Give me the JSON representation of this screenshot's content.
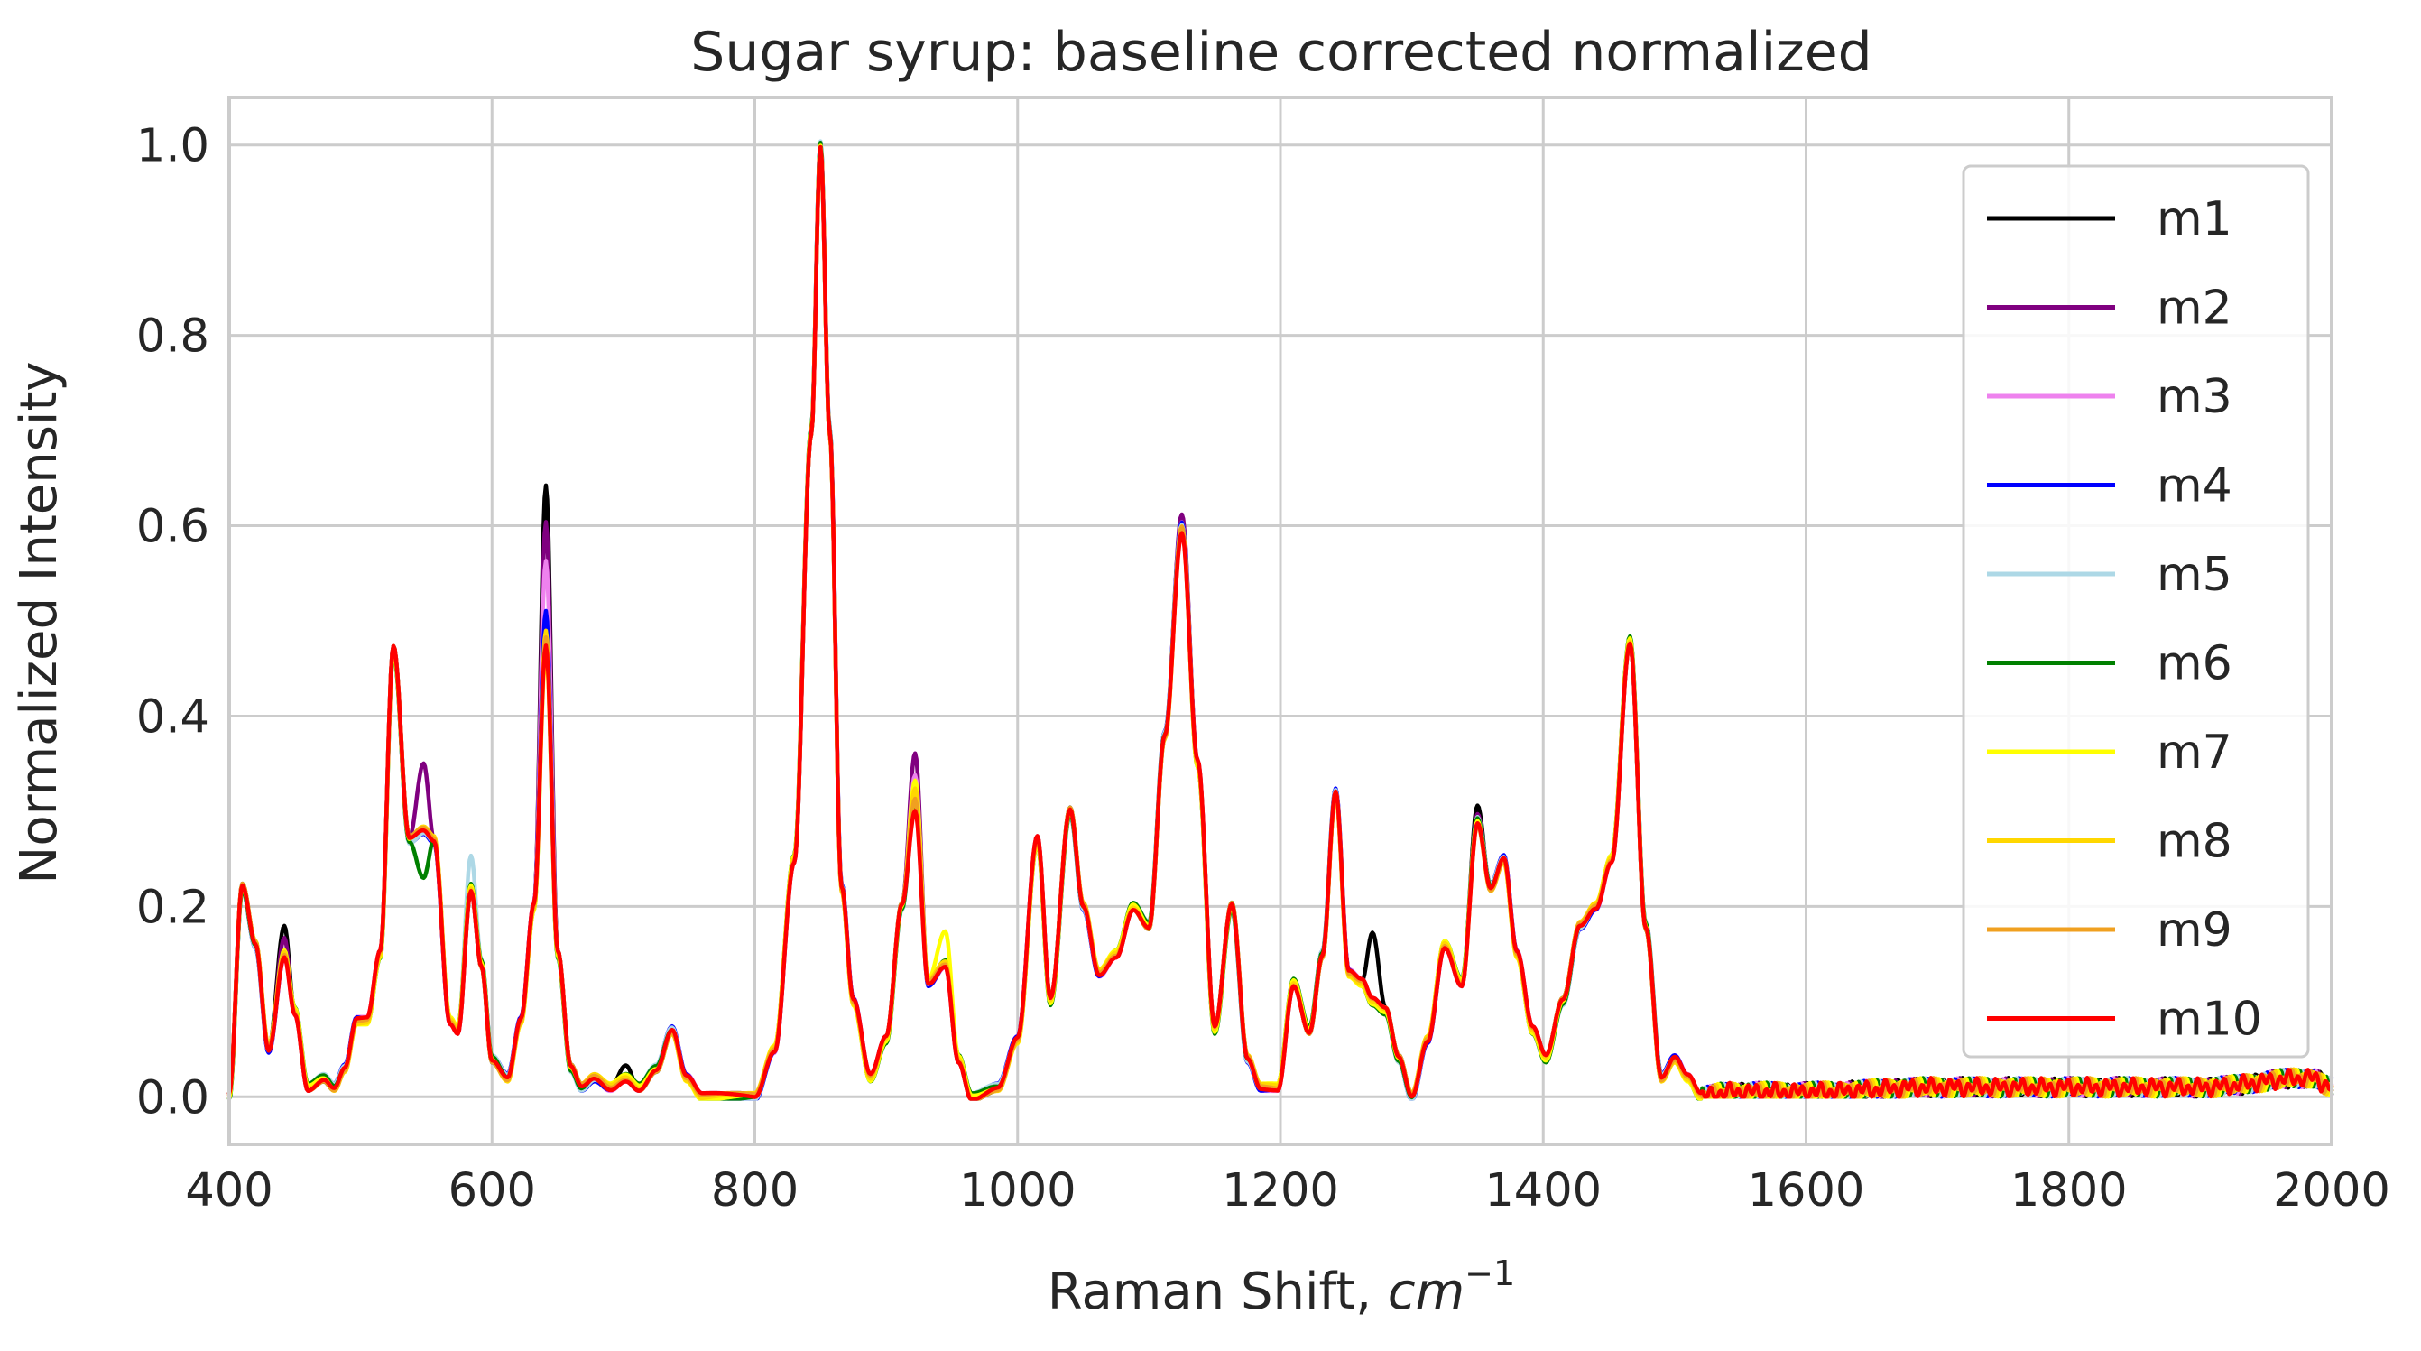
{
  "chart_data": {
    "type": "line",
    "title": "Sugar syrup: baseline corrected normalized",
    "xlabel": "Raman Shift, ",
    "xlabel_math": "cm",
    "xlabel_exponent": "−1",
    "ylabel": "Normalized Intensity",
    "xlim": [
      400,
      2000
    ],
    "ylim": [
      -0.05,
      1.05
    ],
    "grid": true,
    "legend_position": "upper-right",
    "xticks": [
      400,
      600,
      800,
      1000,
      1200,
      1400,
      1600,
      1800,
      2000
    ],
    "xtick_labels": [
      "400",
      "600",
      "800",
      "1000",
      "1200",
      "1400",
      "1600",
      "1800",
      "2000"
    ],
    "yticks": [
      0.0,
      0.2,
      0.4,
      0.6,
      0.8,
      1.0
    ],
    "ytick_labels": [
      "0.0",
      "0.2",
      "0.4",
      "0.6",
      "0.8",
      "1.0"
    ],
    "peaks_common": [
      [
        400,
        0.0
      ],
      [
        410,
        0.22
      ],
      [
        420,
        0.16
      ],
      [
        430,
        0.05
      ],
      [
        442,
        0.15
      ],
      [
        450,
        0.09
      ],
      [
        460,
        0.01
      ],
      [
        472,
        0.02
      ],
      [
        480,
        0.01
      ],
      [
        488,
        0.03
      ],
      [
        497,
        0.08
      ],
      [
        505,
        0.08
      ],
      [
        515,
        0.15
      ],
      [
        525,
        0.47
      ],
      [
        537,
        0.27
      ],
      [
        548,
        0.28
      ],
      [
        556,
        0.27
      ],
      [
        568,
        0.08
      ],
      [
        574,
        0.07
      ],
      [
        584,
        0.22
      ],
      [
        592,
        0.14
      ],
      [
        600,
        0.04
      ],
      [
        612,
        0.02
      ],
      [
        622,
        0.08
      ],
      [
        632,
        0.2
      ],
      [
        641,
        0.48
      ],
      [
        650,
        0.15
      ],
      [
        660,
        0.03
      ],
      [
        668,
        0.01
      ],
      [
        678,
        0.02
      ],
      [
        690,
        0.01
      ],
      [
        702,
        0.02
      ],
      [
        712,
        0.01
      ],
      [
        725,
        0.03
      ],
      [
        737,
        0.07
      ],
      [
        748,
        0.02
      ],
      [
        760,
        0.0
      ],
      [
        780,
        0.0
      ],
      [
        800,
        0.0
      ],
      [
        815,
        0.05
      ],
      [
        830,
        0.25
      ],
      [
        843,
        0.7
      ],
      [
        850,
        1.0
      ],
      [
        857,
        0.7
      ],
      [
        866,
        0.22
      ],
      [
        875,
        0.1
      ],
      [
        888,
        0.02
      ],
      [
        900,
        0.06
      ],
      [
        912,
        0.2
      ],
      [
        922,
        0.31
      ],
      [
        932,
        0.12
      ],
      [
        945,
        0.14
      ],
      [
        955,
        0.04
      ],
      [
        965,
        0.0
      ],
      [
        985,
        0.01
      ],
      [
        1000,
        0.06
      ],
      [
        1015,
        0.27
      ],
      [
        1025,
        0.1
      ],
      [
        1040,
        0.3
      ],
      [
        1050,
        0.2
      ],
      [
        1062,
        0.13
      ],
      [
        1075,
        0.15
      ],
      [
        1088,
        0.2
      ],
      [
        1100,
        0.18
      ],
      [
        1112,
        0.38
      ],
      [
        1125,
        0.6
      ],
      [
        1137,
        0.35
      ],
      [
        1150,
        0.07
      ],
      [
        1163,
        0.2
      ],
      [
        1175,
        0.04
      ],
      [
        1185,
        0.01
      ],
      [
        1198,
        0.01
      ],
      [
        1210,
        0.12
      ],
      [
        1222,
        0.07
      ],
      [
        1232,
        0.15
      ],
      [
        1242,
        0.32
      ],
      [
        1252,
        0.13
      ],
      [
        1262,
        0.12
      ],
      [
        1270,
        0.1
      ],
      [
        1280,
        0.09
      ],
      [
        1290,
        0.04
      ],
      [
        1300,
        0.0
      ],
      [
        1312,
        0.06
      ],
      [
        1325,
        0.16
      ],
      [
        1338,
        0.12
      ],
      [
        1350,
        0.29
      ],
      [
        1360,
        0.22
      ],
      [
        1370,
        0.25
      ],
      [
        1380,
        0.15
      ],
      [
        1392,
        0.07
      ],
      [
        1402,
        0.04
      ],
      [
        1415,
        0.1
      ],
      [
        1428,
        0.18
      ],
      [
        1440,
        0.2
      ],
      [
        1452,
        0.25
      ],
      [
        1466,
        0.48
      ],
      [
        1478,
        0.18
      ],
      [
        1490,
        0.02
      ],
      [
        1500,
        0.04
      ],
      [
        1510,
        0.02
      ],
      [
        1520,
        0.0
      ],
      [
        1540,
        0.005
      ],
      [
        1560,
        0.005
      ],
      [
        1600,
        0.005
      ],
      [
        1700,
        0.01
      ],
      [
        1800,
        0.01
      ],
      [
        1900,
        0.01
      ],
      [
        1985,
        0.02
      ],
      [
        2000,
        0.01
      ]
    ],
    "series": [
      {
        "name": "m1",
        "color": "#000000",
        "peak_scale": {
          "441": 0.18,
          "641": 0.64,
          "700": 0.035,
          "1128": 0.61,
          "1268": 0.17,
          "1350": 0.31,
          "1440": 0.2
        }
      },
      {
        "name": "m2",
        "color": "#800080",
        "peak_scale": {
          "441": 0.17,
          "552": 0.35,
          "641": 0.6,
          "922": 0.36,
          "1128": 0.61,
          "1350": 0.3
        }
      },
      {
        "name": "m3",
        "color": "#ee82ee",
        "peak_scale": {
          "641": 0.56,
          "922": 0.34,
          "1128": 0.6
        }
      },
      {
        "name": "m4",
        "color": "#0000ff",
        "peak_scale": {
          "641": 0.51,
          "922": 0.33
        }
      },
      {
        "name": "m5",
        "color": "#add8e6",
        "peak_scale": {
          "584": 0.25,
          "641": 0.48,
          "922": 0.31
        }
      },
      {
        "name": "m6",
        "color": "#008000",
        "peak_scale": {
          "552": 0.23,
          "641": 0.48,
          "1466": 0.48
        }
      },
      {
        "name": "m7",
        "color": "#ffff00",
        "peak_scale": {
          "641": 0.47,
          "922": 0.33,
          "945": 0.17
        }
      },
      {
        "name": "m8",
        "color": "#ffd700",
        "peak_scale": {
          "641": 0.49,
          "922": 0.32
        }
      },
      {
        "name": "m9",
        "color": "#f0a020",
        "peak_scale": {
          "641": 0.48
        }
      },
      {
        "name": "m10",
        "color": "#ff0000",
        "peak_scale": {
          "641": 0.47,
          "922": 0.3,
          "1128": 0.59
        }
      }
    ]
  }
}
